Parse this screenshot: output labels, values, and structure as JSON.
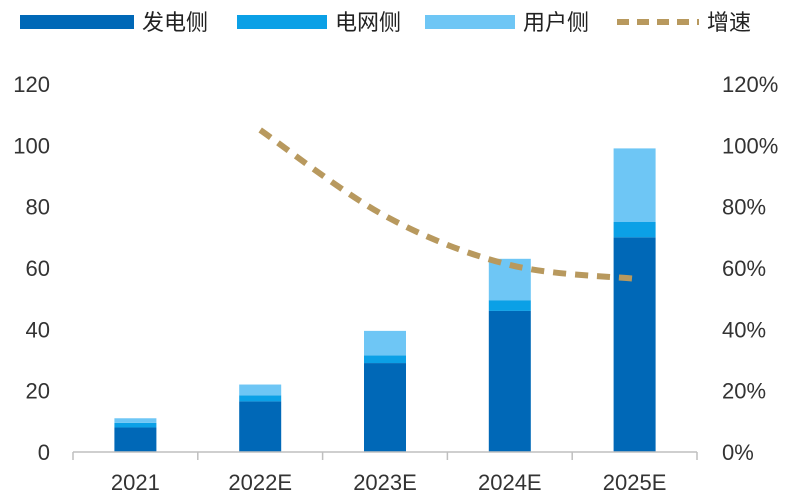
{
  "chart_data": {
    "type": "bar",
    "stacked": true,
    "title": "",
    "xlabel": "",
    "ylabel": "",
    "categories": [
      "2021",
      "2022E",
      "2023E",
      "2024E",
      "2025E"
    ],
    "series": [
      {
        "name": "发电侧",
        "type": "bar",
        "color": "#0068B7",
        "values": [
          8.0,
          16.5,
          29.0,
          46.0,
          70.0
        ]
      },
      {
        "name": "电网侧",
        "type": "bar",
        "color": "#0BA0E6",
        "values": [
          1.5,
          2.0,
          2.5,
          3.5,
          5.0
        ]
      },
      {
        "name": "用户侧",
        "type": "bar",
        "color": "#6EC6F5",
        "values": [
          1.5,
          3.5,
          8.0,
          13.5,
          24.0
        ]
      },
      {
        "name": "增速",
        "type": "line",
        "axis": "right",
        "color": "#B8995E",
        "values": [
          null,
          1.05,
          0.77,
          0.61,
          0.565
        ]
      }
    ],
    "ylim": [
      0,
      120
    ],
    "yticks": [
      "0",
      "20",
      "40",
      "60",
      "80",
      "100",
      "120"
    ],
    "y2lim": [
      0,
      1.2
    ],
    "y2ticks": [
      "0%",
      "20%",
      "40%",
      "60%",
      "80%",
      "100%",
      "120%"
    ],
    "legend_position": "top"
  }
}
